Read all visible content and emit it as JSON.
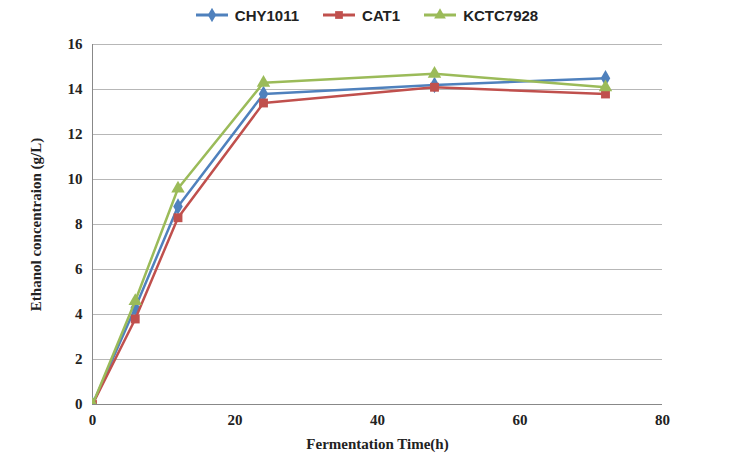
{
  "chart_data": {
    "type": "line",
    "x": [
      0,
      6,
      12,
      24,
      48,
      72
    ],
    "series": [
      {
        "name": "CHY1011",
        "color": "#4f81bd",
        "marker": "diamond",
        "values": [
          0,
          4.3,
          8.8,
          13.8,
          14.2,
          14.5
        ]
      },
      {
        "name": "CAT1",
        "color": "#c0504d",
        "marker": "square",
        "values": [
          0,
          3.8,
          8.3,
          13.4,
          14.1,
          13.8
        ]
      },
      {
        "name": "KCTC7928",
        "color": "#9bbb59",
        "marker": "triangle",
        "values": [
          0,
          4.6,
          9.6,
          14.3,
          14.7,
          14.1
        ]
      }
    ],
    "x_label": "Fermentation Time(h)",
    "y_label": "Ethanol concentraion (g/L)",
    "xlim": [
      0,
      80
    ],
    "xticks": [
      0,
      20,
      40,
      60,
      80
    ],
    "ylim": [
      0,
      16
    ],
    "yticks": [
      0,
      2,
      4,
      6,
      8,
      10,
      12,
      14,
      16
    ],
    "grid": true,
    "legend": "top"
  }
}
